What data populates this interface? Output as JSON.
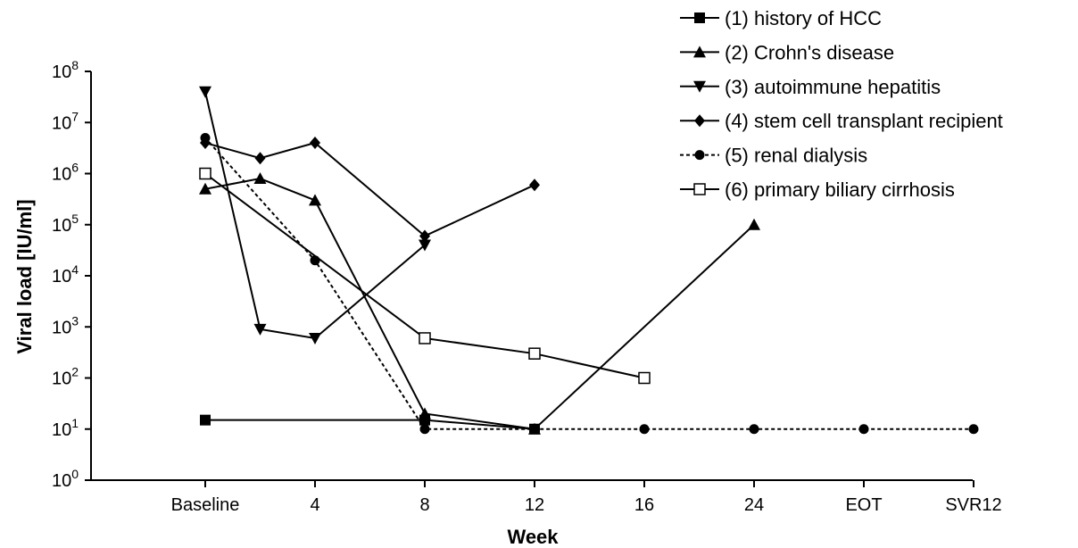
{
  "chart_data": {
    "type": "line",
    "title": "",
    "xlabel": "Week",
    "ylabel": "Viral load [IU/ml]",
    "yscale": "log10",
    "ylim": [
      1,
      100000000
    ],
    "y_ticks": [
      {
        "value": 1,
        "base": "10",
        "exp": "0"
      },
      {
        "value": 10,
        "base": "10",
        "exp": "1"
      },
      {
        "value": 100,
        "base": "10",
        "exp": "2"
      },
      {
        "value": 1000,
        "base": "10",
        "exp": "3"
      },
      {
        "value": 10000,
        "base": "10",
        "exp": "4"
      },
      {
        "value": 100000,
        "base": "10",
        "exp": "5"
      },
      {
        "value": 1000000,
        "base": "10",
        "exp": "6"
      },
      {
        "value": 10000000,
        "base": "10",
        "exp": "7"
      },
      {
        "value": 100000000,
        "base": "10",
        "exp": "8"
      }
    ],
    "x_ticks": [
      "Baseline",
      "4",
      "8",
      "12",
      "16",
      "24",
      "EOT",
      "SVR12"
    ],
    "grid": false,
    "legend_position": "top-right",
    "series": [
      {
        "name": "(1) history of HCC",
        "marker": "square",
        "dashed": false,
        "points": [
          {
            "x": "Baseline",
            "y": 15
          },
          {
            "x": "8",
            "y": 15
          },
          {
            "x": "12",
            "y": 10
          }
        ]
      },
      {
        "name": "(2) Crohn's disease",
        "marker": "triangle-up",
        "dashed": false,
        "points": [
          {
            "x": "Baseline",
            "y": 500000
          },
          {
            "x": "2",
            "y": 800000
          },
          {
            "x": "4",
            "y": 300000
          },
          {
            "x": "8",
            "y": 20
          },
          {
            "x": "12",
            "y": 10
          },
          {
            "x": "24",
            "y": 100000
          }
        ]
      },
      {
        "name": "(3) autoimmune hepatitis",
        "marker": "triangle-down",
        "dashed": false,
        "points": [
          {
            "x": "Baseline",
            "y": 40000000
          },
          {
            "x": "2",
            "y": 900
          },
          {
            "x": "4",
            "y": 600
          },
          {
            "x": "8",
            "y": 40000
          }
        ]
      },
      {
        "name": "(4) stem cell transplant recipient",
        "marker": "diamond",
        "dashed": false,
        "points": [
          {
            "x": "Baseline",
            "y": 4000000
          },
          {
            "x": "2",
            "y": 2000000
          },
          {
            "x": "4",
            "y": 4000000
          },
          {
            "x": "8",
            "y": 60000
          },
          {
            "x": "12",
            "y": 600000
          }
        ]
      },
      {
        "name": "(5) renal dialysis",
        "marker": "circle",
        "dashed": true,
        "points": [
          {
            "x": "Baseline",
            "y": 5000000
          },
          {
            "x": "4",
            "y": 20000
          },
          {
            "x": "8",
            "y": 10
          },
          {
            "x": "12",
            "y": 10
          },
          {
            "x": "16",
            "y": 10
          },
          {
            "x": "24",
            "y": 10
          },
          {
            "x": "EOT",
            "y": 10
          },
          {
            "x": "SVR12",
            "y": 10
          }
        ]
      },
      {
        "name": "(6) primary biliary cirrhosis",
        "marker": "open-square",
        "dashed": false,
        "points": [
          {
            "x": "Baseline",
            "y": 1000000
          },
          {
            "x": "8",
            "y": 600
          },
          {
            "x": "12",
            "y": 300
          },
          {
            "x": "16",
            "y": 100
          }
        ]
      }
    ]
  }
}
